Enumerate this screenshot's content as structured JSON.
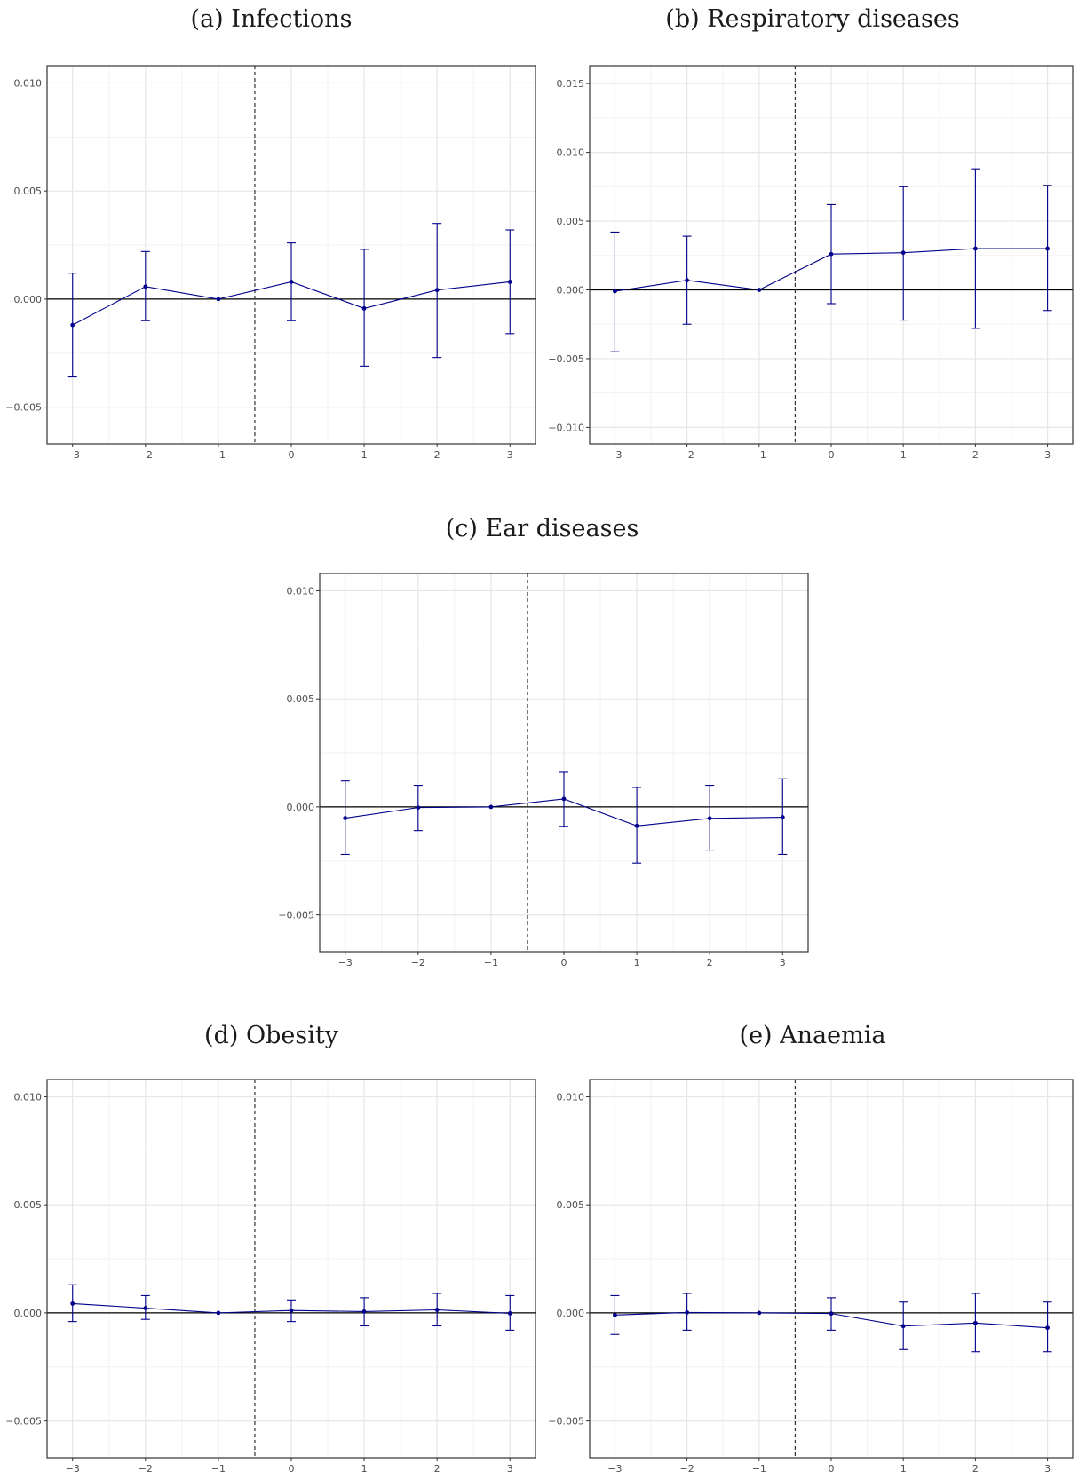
{
  "colors": {
    "series": "#00008b",
    "grid_major": "#e6e6e6",
    "grid_minor": "#f2f2f2",
    "zero_line": "#000000",
    "event_line": "#333333",
    "panel_border": "#333333"
  },
  "chart_data": [
    {
      "type": "line",
      "title": "(a) Infections",
      "xlabel": "",
      "ylabel": "",
      "x": [
        -3,
        -2,
        -1,
        0,
        1,
        2,
        3
      ],
      "xticks": [
        -3,
        -2,
        -1,
        0,
        1,
        2,
        3
      ],
      "xtick_labels": [
        "−3",
        "−2",
        "−1",
        "0",
        "1",
        "2",
        "3"
      ],
      "xlim": [
        -3.35,
        3.35
      ],
      "yticks": [
        -0.005,
        0,
        0.005,
        0.01
      ],
      "ytick_labels": [
        "−0.005",
        "0.000",
        "0.005",
        "0.010"
      ],
      "ylim": [
        -0.0067,
        0.0108
      ],
      "event_line_x": -0.5,
      "grid": true,
      "series": [
        {
          "values": [
            -0.0012,
            0.00058,
            0.0,
            0.0008,
            -0.00043,
            0.00042,
            0.0008
          ],
          "ci_low": [
            -0.0036,
            -0.001,
            0.0,
            -0.001,
            -0.0031,
            -0.0027,
            -0.0016
          ],
          "ci_high": [
            0.0012,
            0.0022,
            0.0,
            0.0026,
            0.0023,
            0.0035,
            0.0032
          ]
        }
      ]
    },
    {
      "type": "line",
      "title": "(b) Respiratory diseases",
      "xlabel": "",
      "ylabel": "",
      "x": [
        -3,
        -2,
        -1,
        0,
        1,
        2,
        3
      ],
      "xticks": [
        -3,
        -2,
        -1,
        0,
        1,
        2,
        3
      ],
      "xtick_labels": [
        "−3",
        "−2",
        "−1",
        "0",
        "1",
        "2",
        "3"
      ],
      "xlim": [
        -3.35,
        3.35
      ],
      "yticks": [
        -0.01,
        -0.005,
        0,
        0.005,
        0.01,
        0.015
      ],
      "ytick_labels": [
        "−0.010",
        "−0.005",
        "0.000",
        "0.005",
        "0.010",
        "0.015"
      ],
      "ylim": [
        -0.0112,
        0.0163
      ],
      "event_line_x": -0.5,
      "grid": true,
      "series": [
        {
          "values": [
            -0.0001,
            0.0007,
            0.0,
            0.0026,
            0.0027,
            0.003,
            0.003
          ],
          "ci_low": [
            -0.0045,
            -0.0025,
            0.0,
            -0.001,
            -0.0022,
            -0.0028,
            -0.0015
          ],
          "ci_high": [
            0.0042,
            0.0039,
            0.0,
            0.0062,
            0.0075,
            0.0088,
            0.0076
          ]
        }
      ]
    },
    {
      "type": "line",
      "title": "(c) Ear diseases",
      "xlabel": "",
      "ylabel": "",
      "x": [
        -3,
        -2,
        -1,
        0,
        1,
        2,
        3
      ],
      "xticks": [
        -3,
        -2,
        -1,
        0,
        1,
        2,
        3
      ],
      "xtick_labels": [
        "−3",
        "−2",
        "−1",
        "0",
        "1",
        "2",
        "3"
      ],
      "xlim": [
        -3.35,
        3.35
      ],
      "yticks": [
        -0.005,
        0,
        0.005,
        0.01
      ],
      "ytick_labels": [
        "−0.005",
        "0.000",
        "0.005",
        "0.010"
      ],
      "ylim": [
        -0.0067,
        0.0108
      ],
      "event_line_x": -0.5,
      "grid": true,
      "series": [
        {
          "values": [
            -0.00052,
            -3e-05,
            0.0,
            0.00037,
            -0.00088,
            -0.00053,
            -0.00048
          ],
          "ci_low": [
            -0.0022,
            -0.0011,
            0.0,
            -0.0009,
            -0.0026,
            -0.002,
            -0.0022
          ],
          "ci_high": [
            0.0012,
            0.001,
            0.0,
            0.0016,
            0.0009,
            0.001,
            0.0013
          ]
        }
      ]
    },
    {
      "type": "line",
      "title": "(d) Obesity",
      "xlabel": "",
      "ylabel": "",
      "x": [
        -3,
        -2,
        -1,
        0,
        1,
        2,
        3
      ],
      "xticks": [
        -3,
        -2,
        -1,
        0,
        1,
        2,
        3
      ],
      "xtick_labels": [
        "−3",
        "−2",
        "−1",
        "0",
        "1",
        "2",
        "3"
      ],
      "xlim": [
        -3.35,
        3.35
      ],
      "yticks": [
        -0.005,
        0,
        0.005,
        0.01
      ],
      "ytick_labels": [
        "−0.005",
        "0.000",
        "0.005",
        "0.010"
      ],
      "ylim": [
        -0.0067,
        0.0108
      ],
      "event_line_x": -0.5,
      "grid": true,
      "series": [
        {
          "values": [
            0.00043,
            0.00022,
            0.0,
            0.00011,
            6e-05,
            0.00014,
            -2e-05
          ],
          "ci_low": [
            -0.0004,
            -0.0003,
            0.0,
            -0.0004,
            -0.0006,
            -0.0006,
            -0.0008
          ],
          "ci_high": [
            0.0013,
            0.0008,
            0.0,
            0.0006,
            0.0007,
            0.0009,
            0.0008
          ]
        }
      ]
    },
    {
      "type": "line",
      "title": "(e) Anaemia",
      "xlabel": "",
      "ylabel": "",
      "x": [
        -3,
        -2,
        -1,
        0,
        1,
        2,
        3
      ],
      "xticks": [
        -3,
        -2,
        -1,
        0,
        1,
        2,
        3
      ],
      "xtick_labels": [
        "−3",
        "−2",
        "−1",
        "0",
        "1",
        "2",
        "3"
      ],
      "xlim": [
        -3.35,
        3.35
      ],
      "yticks": [
        -0.005,
        0,
        0.005,
        0.01
      ],
      "ytick_labels": [
        "−0.005",
        "0.000",
        "0.005",
        "0.010"
      ],
      "ylim": [
        -0.0067,
        0.0108
      ],
      "event_line_x": -0.5,
      "grid": true,
      "series": [
        {
          "values": [
            -0.0001,
            2e-05,
            0.0,
            -3e-05,
            -0.00061,
            -0.00047,
            -0.00069
          ],
          "ci_low": [
            -0.001,
            -0.0008,
            0.0,
            -0.0008,
            -0.0017,
            -0.0018,
            -0.0018
          ],
          "ci_high": [
            0.0008,
            0.0009,
            0.0,
            0.0007,
            0.0005,
            0.0009,
            0.0005
          ]
        }
      ]
    }
  ]
}
